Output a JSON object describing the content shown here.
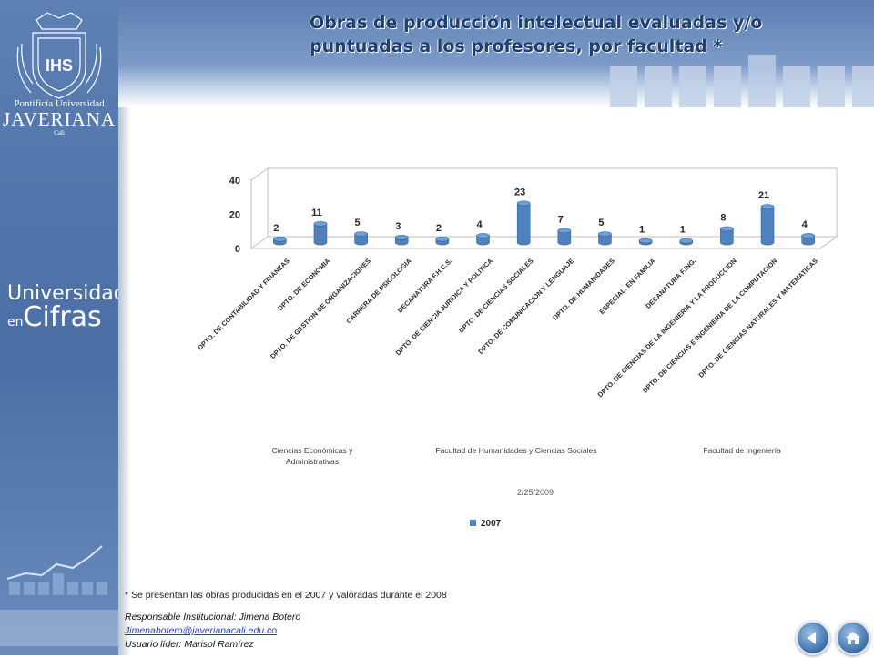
{
  "header": {
    "title_line1": "Obras de producción intelectual evaluadas y/o",
    "title_line2": "puntuadas a los profesores, por facultad *"
  },
  "sidebar": {
    "logo_line1": "Pontificia Universidad",
    "logo_line2": "JAVERIANA",
    "logo_line3": "Cali",
    "brand_line1": "Universidad",
    "brand_line2_prefix": "en",
    "brand_line2": "Cifras"
  },
  "chart_data": {
    "type": "bar",
    "title": "",
    "categories": [
      "DPTO. DE CONTABILIDAD Y FINANZAS",
      "DPTO. DE ECONOMIA",
      "DPTO. DE GESTION DE ORGANIZACIONES",
      "CARRERA DE PSICOLOGIA",
      "DECANATURA F.H.C.S.",
      "DPTO. DE CIENCIA JURIDICA Y POLITICA",
      "DPTO. DE CIENCIAS SOCIALES",
      "DPTO. DE COMUNICACION Y LENGUAJE",
      "DPTO. DE HUMANIDADES",
      "ESPECIAL. EN FAMILIA",
      "DECANATURA F.ING.",
      "DPTO. DE CIENCIAS DE LA INGENIERIA Y LA PRODUCCION",
      "DPTO. DE CIENCIAS E INGENIERIA DE LA COMPUTACION",
      "DPTO. DE CIENCIAS NATURALES Y MATEMATICAS"
    ],
    "series": [
      {
        "name": "2007",
        "values": [
          2,
          11,
          5,
          3,
          2,
          4,
          23,
          7,
          5,
          1,
          1,
          8,
          21,
          4
        ]
      }
    ],
    "ylim": [
      0,
      40
    ],
    "yticks": [
      0,
      20,
      40
    ],
    "groups": [
      {
        "label_line1": "Ciencias Económicas y",
        "label_line2": "Administrativas"
      },
      {
        "label_line1": "Facultad de Humanidades y Ciencias Sociales",
        "label_line2": ""
      },
      {
        "label_line1": "Facultad de Ingeniería",
        "label_line2": ""
      }
    ],
    "date_label": "2/25/2009",
    "legend_position": "bottom",
    "bar_color": "#4f81bd",
    "data_labels": true,
    "grid": false
  },
  "footnote": "* Se presentan las obras producidas en el 2007 y valoradas durante  el 2008",
  "credits": {
    "responsable": "Responsable Institucional: Jimena Botero",
    "email": "Jimenabotero@javerianacali.edu.co",
    "usuario": "Usuario líder: Marisol Ramírez"
  },
  "nav": {
    "back_icon": "arrow-left-icon",
    "home_icon": "home-icon"
  }
}
